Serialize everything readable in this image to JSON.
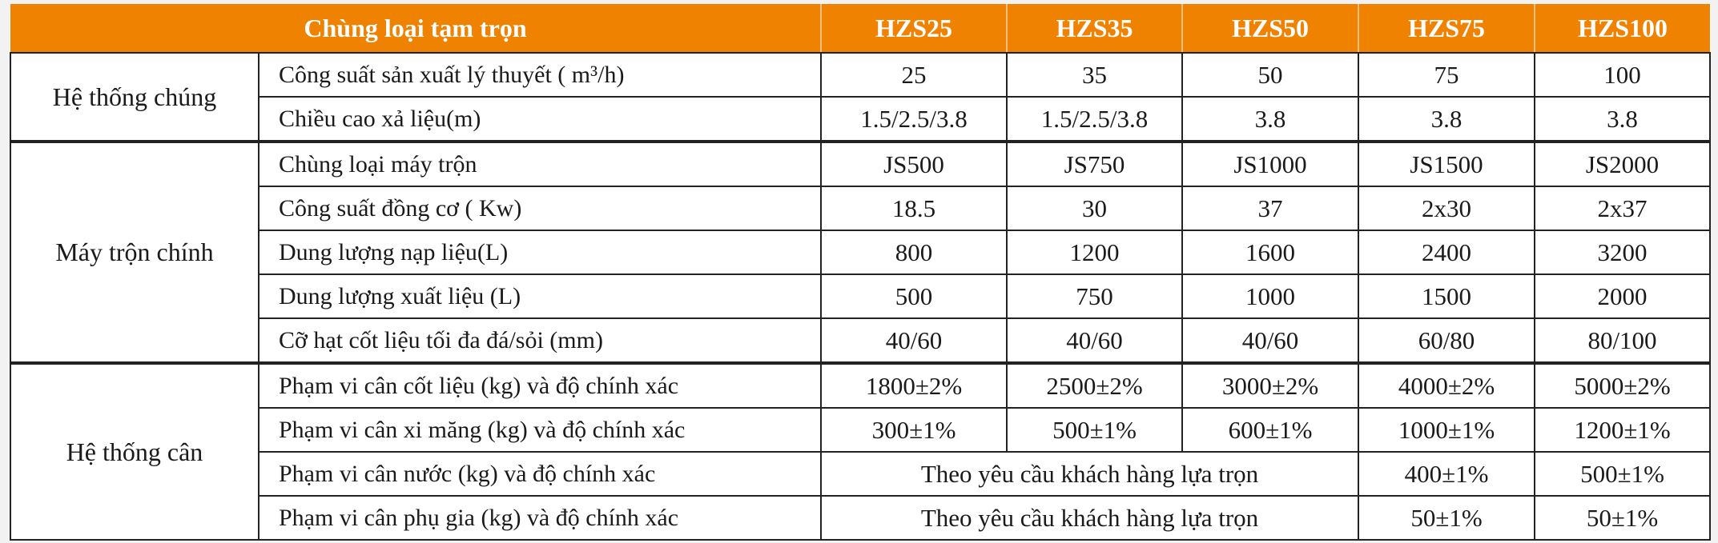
{
  "header": {
    "title": "Chùng loại tạm trọn",
    "models": [
      "HZS25",
      "HZS35",
      "HZS50",
      "HZS75",
      "HZS100"
    ]
  },
  "groups": [
    {
      "name": "Hệ thống chúng",
      "rows": [
        {
          "param": "Công suất sản xuất lý thuyết ( m³/h)",
          "values": [
            "25",
            "35",
            "50",
            "75",
            "100"
          ]
        },
        {
          "param": "Chiều cao xả liệu(m)",
          "values": [
            "1.5/2.5/3.8",
            "1.5/2.5/3.8",
            "3.8",
            "3.8",
            "3.8"
          ]
        }
      ]
    },
    {
      "name": "Máy trộn chính",
      "rows": [
        {
          "param": "Chùng loại máy trộn",
          "values": [
            "JS500",
            "JS750",
            "JS1000",
            "JS1500",
            "JS2000"
          ]
        },
        {
          "param": "Công suất đồng cơ ( Kw)",
          "values": [
            "18.5",
            "30",
            "37",
            "2x30",
            "2x37"
          ]
        },
        {
          "param": "Dung lượng nạp liệu(L)",
          "values": [
            "800",
            "1200",
            "1600",
            "2400",
            "3200"
          ]
        },
        {
          "param": "Dung lượng xuất liệu (L)",
          "values": [
            "500",
            "750",
            "1000",
            "1500",
            "2000"
          ]
        },
        {
          "param": "Cỡ hạt cốt liệu tối đa đá/sỏi (mm)",
          "values": [
            "40/60",
            "40/60",
            "40/60",
            "60/80",
            "80/100"
          ]
        }
      ]
    },
    {
      "name": "Hệ thống cân",
      "rows": [
        {
          "param": "Phạm vi cân cốt liệu (kg) và độ chính xác",
          "values": [
            "1800±2%",
            "2500±2%",
            "3000±2%",
            "4000±2%",
            "5000±2%"
          ]
        },
        {
          "param": "Phạm vi cân xi măng (kg) và độ chính xác",
          "values": [
            "300±1%",
            "500±1%",
            "600±1%",
            "1000±1%",
            "1200±1%"
          ]
        },
        {
          "param": "Phạm vi cân nước (kg) và độ chính xác",
          "merged": "Theo yêu cầu khách hàng lựa trọn",
          "values": [
            "400±1%",
            "500±1%"
          ]
        },
        {
          "param": "Phạm vi cân phụ gia (kg) và độ chính xác",
          "merged": "Theo yêu cầu khách hàng lựa trọn",
          "values": [
            "50±1%",
            "50±1%"
          ]
        }
      ]
    }
  ],
  "colors": {
    "header_bg": "#ef8200",
    "header_text": "#ffffff",
    "border": "#222222"
  }
}
